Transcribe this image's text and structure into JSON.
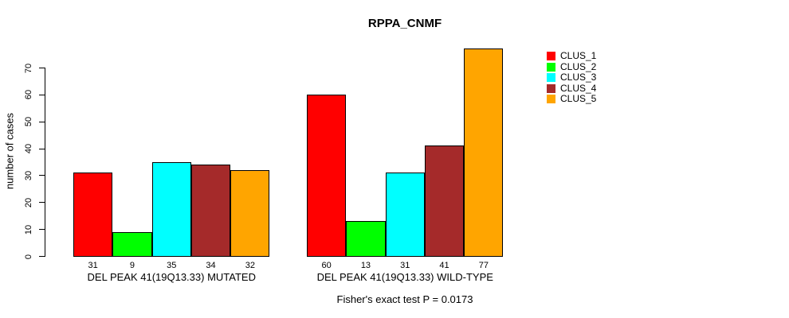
{
  "chart_data": {
    "type": "bar",
    "title": "RPPA_CNMF",
    "ylabel": "number of cases",
    "xlabel": "",
    "ylim": [
      0,
      70
    ],
    "yticks": [
      0,
      10,
      20,
      30,
      40,
      50,
      60,
      70
    ],
    "grid": false,
    "legend_position": "right",
    "categories": [
      "DEL PEAK 41(19Q13.33) MUTATED",
      "DEL PEAK 41(19Q13.33) WILD-TYPE"
    ],
    "series": [
      {
        "name": "CLUS_1",
        "color": "#FF0000",
        "values": [
          31,
          60
        ]
      },
      {
        "name": "CLUS_2",
        "color": "#00FF00",
        "values": [
          9,
          13
        ]
      },
      {
        "name": "CLUS_3",
        "color": "#00FFFF",
        "values": [
          35,
          31
        ]
      },
      {
        "name": "CLUS_4",
        "color": "#A52A2A",
        "values": [
          34,
          41
        ]
      },
      {
        "name": "CLUS_5",
        "color": "#FFA500",
        "values": [
          32,
          77
        ]
      }
    ],
    "bar_value_labels": [
      [
        31,
        9,
        35,
        34,
        32
      ],
      [
        60,
        13,
        31,
        41,
        77
      ]
    ],
    "annotation": "Fisher's exact test P = 0.0173"
  },
  "colors": {
    "background": "#FFFFFF",
    "axis": "#000000",
    "text": "#000000"
  }
}
